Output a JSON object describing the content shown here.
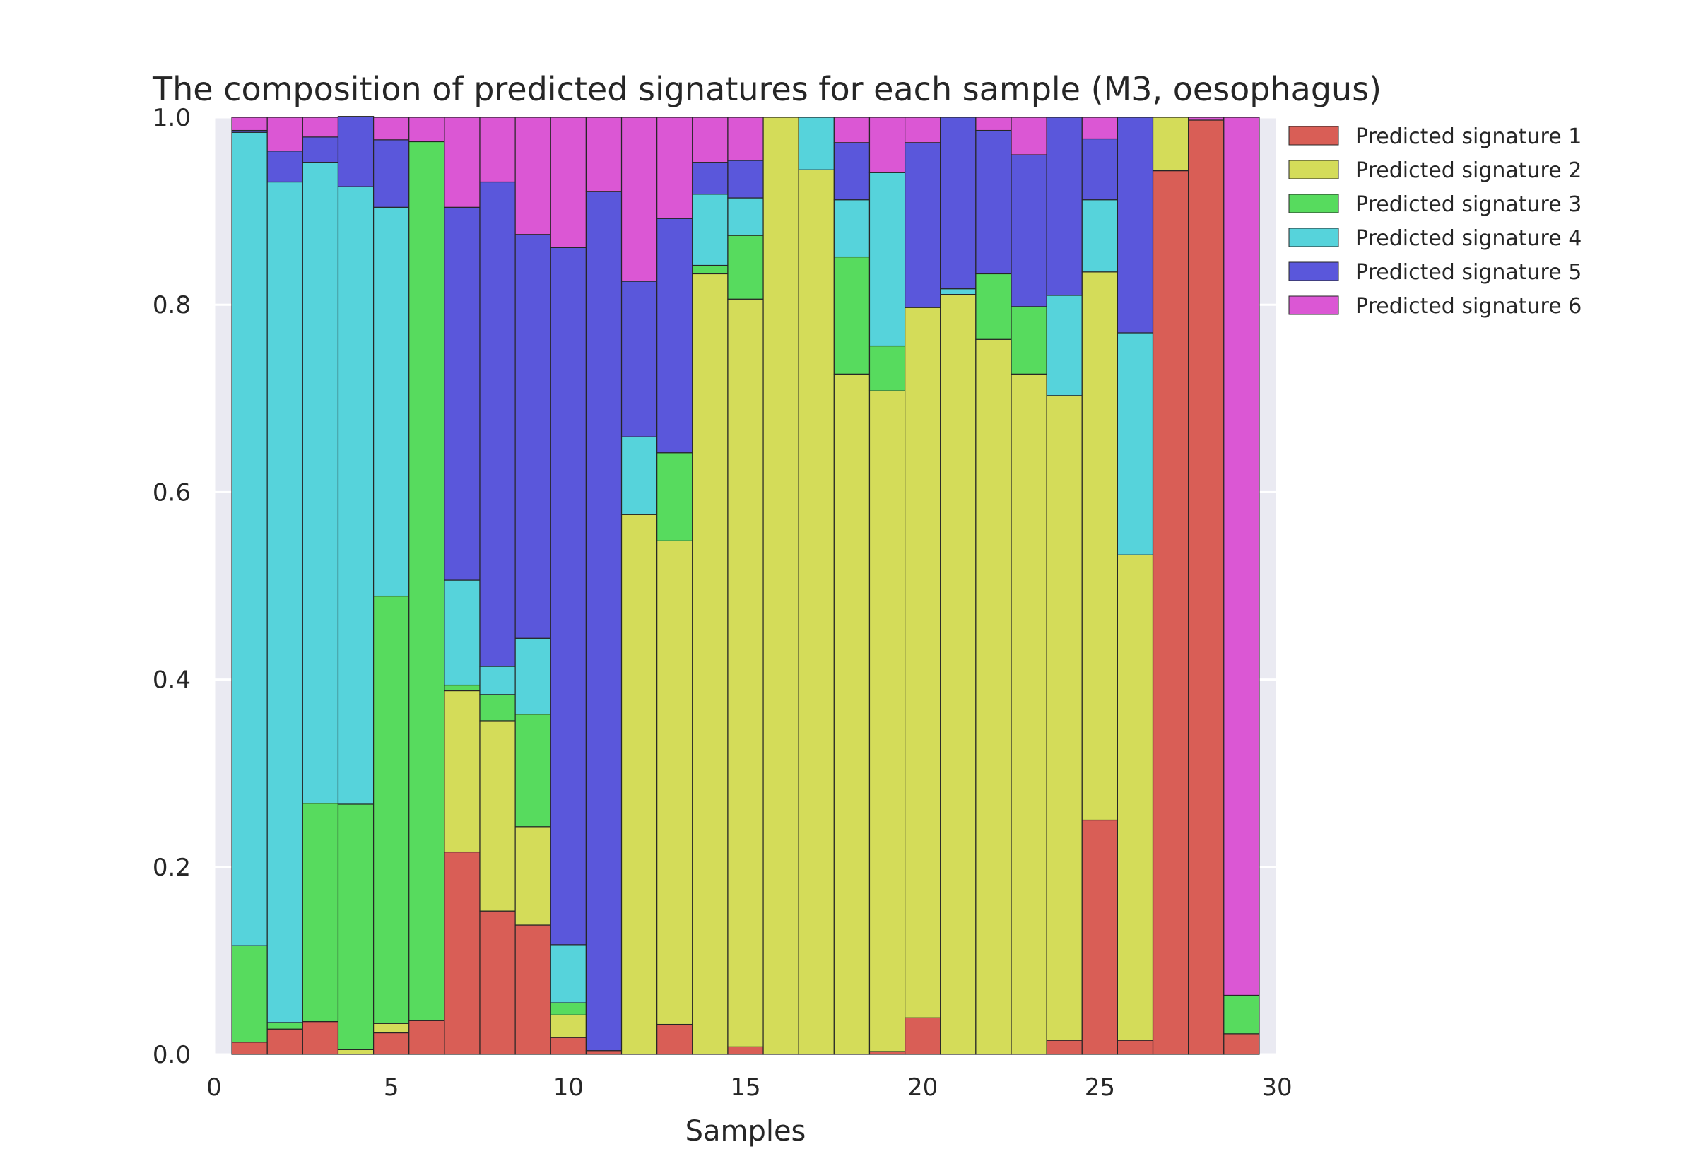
{
  "chart_data": {
    "type": "bar",
    "stacked": true,
    "title": "The composition of predicted signatures for each sample (M3, oesophagus)",
    "xlabel": "Samples",
    "ylabel": "",
    "xlim": [
      0,
      30
    ],
    "ylim": [
      0,
      1.0
    ],
    "xticks": [
      "0",
      "5",
      "10",
      "15",
      "20",
      "25",
      "30"
    ],
    "yticks": [
      "0.0",
      "0.2",
      "0.4",
      "0.6",
      "0.8",
      "1.0"
    ],
    "grid": true,
    "legend_position": "outside-right-top",
    "x": [
      1,
      2,
      3,
      4,
      5,
      6,
      7,
      8,
      9,
      10,
      11,
      12,
      13,
      14,
      15,
      16,
      17,
      18,
      19,
      20,
      21,
      22,
      23,
      24,
      25,
      26,
      27,
      28,
      29
    ],
    "series": [
      {
        "name": "Predicted signature 1",
        "color": "#d95e56",
        "values": [
          0.013,
          0.027,
          0.035,
          0.0,
          0.023,
          0.036,
          0.216,
          0.153,
          0.138,
          0.018,
          0.004,
          0.0,
          0.032,
          0.0,
          0.008,
          0.0,
          0.0,
          0.0,
          0.003,
          0.039,
          0.0,
          0.0,
          0.0,
          0.015,
          0.25,
          0.015,
          0.943,
          0.997,
          0.022
        ]
      },
      {
        "name": "Predicted signature 2",
        "color": "#d4dc59",
        "values": [
          0.0,
          0.0,
          0.0,
          0.005,
          0.01,
          0.0,
          0.172,
          0.203,
          0.105,
          0.024,
          0.0,
          0.576,
          0.516,
          0.833,
          0.798,
          1.0,
          0.944,
          0.726,
          0.705,
          0.758,
          0.811,
          0.763,
          0.726,
          0.688,
          0.585,
          0.518,
          0.057,
          0.0,
          0.0
        ]
      },
      {
        "name": "Predicted signature 3",
        "color": "#57db5e",
        "values": [
          0.103,
          0.007,
          0.233,
          0.262,
          0.456,
          0.938,
          0.006,
          0.028,
          0.12,
          0.013,
          0.0,
          0.0,
          0.094,
          0.009,
          0.068,
          0.0,
          0.0,
          0.125,
          0.048,
          0.0,
          0.0,
          0.07,
          0.072,
          0.0,
          0.0,
          0.0,
          0.0,
          0.0,
          0.041
        ]
      },
      {
        "name": "Predicted signature 4",
        "color": "#56d3db",
        "values": [
          0.868,
          0.897,
          0.684,
          0.659,
          0.415,
          0.0,
          0.112,
          0.03,
          0.081,
          0.062,
          0.0,
          0.083,
          0.0,
          0.076,
          0.04,
          0.0,
          0.056,
          0.061,
          0.185,
          0.0,
          0.006,
          0.0,
          0.0,
          0.107,
          0.077,
          0.237,
          0.0,
          0.0,
          0.0
        ]
      },
      {
        "name": "Predicted signature 5",
        "color": "#5a57db",
        "values": [
          0.002,
          0.033,
          0.027,
          0.075,
          0.072,
          0.0,
          0.398,
          0.517,
          0.431,
          0.744,
          0.917,
          0.166,
          0.25,
          0.034,
          0.04,
          0.0,
          0.0,
          0.061,
          0.0,
          0.176,
          0.183,
          0.153,
          0.162,
          0.19,
          0.065,
          0.23,
          0.0,
          0.0,
          0.0
        ]
      },
      {
        "name": "Predicted signature 6",
        "color": "#db57d4",
        "values": [
          0.014,
          0.036,
          0.021,
          0.0,
          0.024,
          0.026,
          0.096,
          0.069,
          0.125,
          0.139,
          0.079,
          0.175,
          0.108,
          0.048,
          0.046,
          0.0,
          0.0,
          0.027,
          0.059,
          0.027,
          0.0,
          0.014,
          0.04,
          0.0,
          0.023,
          0.0,
          0.0,
          0.003,
          0.937
        ]
      }
    ]
  }
}
